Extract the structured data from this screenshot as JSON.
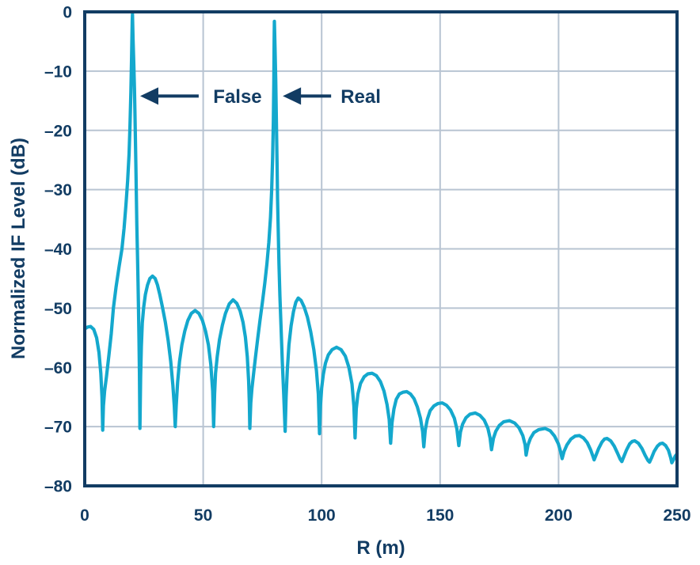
{
  "colors": {
    "curve": "#14a8cd",
    "axis": "#123c63",
    "grid": "#b8c4d2",
    "text": "#123c63",
    "background": "#ffffff"
  },
  "chart_data": {
    "type": "line",
    "title": "",
    "xlabel": "R (m)",
    "ylabel": "Normalized IF Level (dB)",
    "xlim": [
      0,
      250
    ],
    "ylim": [
      -80,
      0
    ],
    "grid": true,
    "legend": "none",
    "x_ticks": {
      "values": [
        0,
        50,
        100,
        150,
        200,
        250
      ],
      "labels": [
        "0",
        "50",
        "100",
        "150",
        "200",
        "250"
      ]
    },
    "y_ticks": {
      "values": [
        0,
        -10,
        -20,
        -30,
        -40,
        -50,
        -60,
        -70,
        -80
      ],
      "labels": [
        "0",
        "–10",
        "–20",
        "–30",
        "–40",
        "–50",
        "–60",
        "–70",
        "–80"
      ]
    },
    "peaks": [
      {
        "label": "False",
        "x": 20,
        "db": -0.4
      },
      {
        "label": "Real",
        "x": 80,
        "db": -1.6
      }
    ],
    "annotations": [
      {
        "label": "False",
        "arrow_db": -14.2,
        "arrow_tip_m": 23.4,
        "arrow_tail_m": 48.1,
        "label_x_m": 64.5
      },
      {
        "label": "Real",
        "arrow_db": -14.2,
        "arrow_tip_m": 83.6,
        "arrow_tail_m": 104,
        "label_x_m": 116.5
      }
    ],
    "series": [
      {
        "name": "Normalized IF level",
        "points": [
          [
            0,
            -53.5
          ],
          [
            1.2,
            -53.2
          ],
          [
            2.5,
            -53.1
          ],
          [
            3.8,
            -53.6
          ],
          [
            5,
            -55
          ],
          [
            6,
            -57.5
          ],
          [
            6.8,
            -61
          ],
          [
            7.3,
            -65
          ],
          [
            7.6,
            -70.6
          ],
          [
            7.9,
            -66.5
          ],
          [
            8.4,
            -64
          ],
          [
            9.2,
            -61.5
          ],
          [
            10.2,
            -58
          ],
          [
            11.2,
            -54.3
          ],
          [
            12.1,
            -50
          ],
          [
            13.2,
            -46.5
          ],
          [
            14.5,
            -43
          ],
          [
            15.7,
            -40
          ],
          [
            16.6,
            -36.5
          ],
          [
            17.4,
            -32.5
          ],
          [
            18.1,
            -28.5
          ],
          [
            18.7,
            -24
          ],
          [
            19.1,
            -19.5
          ],
          [
            19.5,
            -13.5
          ],
          [
            19.8,
            -7.5
          ],
          [
            20.05,
            -1.5
          ],
          [
            20.15,
            -0.4
          ],
          [
            20.4,
            -4.5
          ],
          [
            20.7,
            -8.5
          ],
          [
            21,
            -13
          ],
          [
            21.2,
            -17
          ],
          [
            21.4,
            -21.5
          ],
          [
            21.6,
            -26
          ],
          [
            21.8,
            -31
          ],
          [
            22,
            -36
          ],
          [
            22.3,
            -41.5
          ],
          [
            22.5,
            -45.5
          ],
          [
            22.7,
            -50
          ],
          [
            22.9,
            -55
          ],
          [
            23.1,
            -61
          ],
          [
            23.3,
            -70.3
          ],
          [
            23.6,
            -61.5
          ],
          [
            23.9,
            -56.5
          ],
          [
            24.3,
            -52.5
          ],
          [
            24.9,
            -49.8
          ],
          [
            25.6,
            -47.7
          ],
          [
            26.5,
            -46.1
          ],
          [
            27.5,
            -45
          ],
          [
            28.6,
            -44.6
          ],
          [
            29.7,
            -45
          ],
          [
            30.7,
            -46.1
          ],
          [
            31.7,
            -47.7
          ],
          [
            32.8,
            -49.8
          ],
          [
            34,
            -52.3
          ],
          [
            35.2,
            -55.4
          ],
          [
            36.3,
            -59
          ],
          [
            37.2,
            -63
          ],
          [
            37.8,
            -66.5
          ],
          [
            38.2,
            -70
          ],
          [
            38.6,
            -66.5
          ],
          [
            39.2,
            -62.5
          ],
          [
            40,
            -59
          ],
          [
            41,
            -56.2
          ],
          [
            42.2,
            -53.9
          ],
          [
            43.5,
            -52.1
          ],
          [
            45,
            -50.9
          ],
          [
            46.6,
            -50.4
          ],
          [
            48.2,
            -50.9
          ],
          [
            49.7,
            -52.1
          ],
          [
            51,
            -53.9
          ],
          [
            52.2,
            -56.2
          ],
          [
            53.2,
            -59.5
          ],
          [
            54,
            -64
          ],
          [
            54.4,
            -70
          ],
          [
            54.8,
            -64.5
          ],
          [
            55.2,
            -61
          ],
          [
            55.9,
            -58.2
          ],
          [
            56.9,
            -55.3
          ],
          [
            58.1,
            -52.9
          ],
          [
            59.4,
            -50.9
          ],
          [
            61,
            -49.3
          ],
          [
            62.6,
            -48.6
          ],
          [
            64.2,
            -49.2
          ],
          [
            65.6,
            -50.5
          ],
          [
            66.8,
            -52.4
          ],
          [
            67.8,
            -54.9
          ],
          [
            68.6,
            -58.2
          ],
          [
            69.2,
            -62.3
          ],
          [
            69.5,
            -66
          ],
          [
            69.7,
            -70.3
          ],
          [
            70.1,
            -66
          ],
          [
            70.6,
            -63.5
          ],
          [
            71.3,
            -61
          ],
          [
            72.1,
            -58.2
          ],
          [
            73,
            -55.2
          ],
          [
            74,
            -52
          ],
          [
            75,
            -49
          ],
          [
            76,
            -45.8
          ],
          [
            76.9,
            -42.5
          ],
          [
            77.7,
            -38.9
          ],
          [
            78.4,
            -34.7
          ],
          [
            78.9,
            -30
          ],
          [
            79.3,
            -24.5
          ],
          [
            79.6,
            -18.5
          ],
          [
            79.8,
            -12
          ],
          [
            79.95,
            -5
          ],
          [
            80.05,
            -1.6
          ],
          [
            80.3,
            -6
          ],
          [
            80.6,
            -11.5
          ],
          [
            80.8,
            -16.5
          ],
          [
            81,
            -21.5
          ],
          [
            81.2,
            -26.5
          ],
          [
            81.4,
            -31.5
          ],
          [
            81.7,
            -37
          ],
          [
            82,
            -42.5
          ],
          [
            82.4,
            -48
          ],
          [
            82.9,
            -53.5
          ],
          [
            83.4,
            -59
          ],
          [
            84,
            -64.5
          ],
          [
            84.6,
            -70.8
          ],
          [
            85,
            -65
          ],
          [
            85.5,
            -60.5
          ],
          [
            86.2,
            -56.2
          ],
          [
            87.1,
            -53
          ],
          [
            88.1,
            -50.6
          ],
          [
            89.1,
            -49
          ],
          [
            90.1,
            -48.3
          ],
          [
            91.3,
            -48.7
          ],
          [
            92.6,
            -49.8
          ],
          [
            94,
            -51.5
          ],
          [
            95.4,
            -54
          ],
          [
            96.7,
            -57
          ],
          [
            97.8,
            -60.5
          ],
          [
            98.6,
            -64.5
          ],
          [
            99.1,
            -71.2
          ],
          [
            99.5,
            -66.5
          ],
          [
            100,
            -63.5
          ],
          [
            100.7,
            -61.2
          ],
          [
            101.6,
            -59.3
          ],
          [
            102.8,
            -57.9
          ],
          [
            104.4,
            -57
          ],
          [
            106.3,
            -56.6
          ],
          [
            108.2,
            -57
          ],
          [
            110,
            -58.1
          ],
          [
            111.5,
            -60
          ],
          [
            112.8,
            -62.8
          ],
          [
            113.6,
            -66.5
          ],
          [
            114.1,
            -71.9
          ],
          [
            114.6,
            -67
          ],
          [
            115.3,
            -64.5
          ],
          [
            116.4,
            -62.7
          ],
          [
            117.9,
            -61.6
          ],
          [
            119.5,
            -61.1
          ],
          [
            121.3,
            -61
          ],
          [
            123.1,
            -61.4
          ],
          [
            124.8,
            -62.4
          ],
          [
            126.3,
            -64
          ],
          [
            127.6,
            -66.3
          ],
          [
            128.5,
            -68.8
          ],
          [
            129.1,
            -72.8
          ],
          [
            129.7,
            -69.3
          ],
          [
            130.5,
            -67
          ],
          [
            131.5,
            -65.4
          ],
          [
            132.8,
            -64.5
          ],
          [
            134.3,
            -64.2
          ],
          [
            135.9,
            -64.1
          ],
          [
            137.5,
            -64.5
          ],
          [
            139,
            -65.3
          ],
          [
            140.4,
            -66.7
          ],
          [
            141.7,
            -68.6
          ],
          [
            142.6,
            -70.8
          ],
          [
            143.1,
            -73.4
          ],
          [
            143.7,
            -70.6
          ],
          [
            144.6,
            -68.8
          ],
          [
            145.8,
            -67.3
          ],
          [
            147.4,
            -66.5
          ],
          [
            149.1,
            -66.1
          ],
          [
            150.9,
            -66
          ],
          [
            152.7,
            -66.4
          ],
          [
            154.4,
            -67.2
          ],
          [
            156,
            -68.6
          ],
          [
            157.1,
            -70.4
          ],
          [
            157.9,
            -73.2
          ],
          [
            158.6,
            -70.9
          ],
          [
            159.5,
            -69.6
          ],
          [
            160.9,
            -68.5
          ],
          [
            162.6,
            -67.9
          ],
          [
            164.8,
            -67.7
          ],
          [
            166.8,
            -68.1
          ],
          [
            168.6,
            -68.9
          ],
          [
            170.2,
            -70.3
          ],
          [
            171.1,
            -71.9
          ],
          [
            171.7,
            -73.9
          ],
          [
            172.5,
            -72
          ],
          [
            173.5,
            -70.8
          ],
          [
            175,
            -69.8
          ],
          [
            176.8,
            -69.2
          ],
          [
            179.3,
            -69
          ],
          [
            181.5,
            -69.4
          ],
          [
            183.3,
            -70.2
          ],
          [
            184.9,
            -71.5
          ],
          [
            185.9,
            -73.1
          ],
          [
            186.3,
            -74.8
          ],
          [
            187.1,
            -73.1
          ],
          [
            188.1,
            -72
          ],
          [
            189.6,
            -71
          ],
          [
            191.6,
            -70.5
          ],
          [
            194.3,
            -70.3
          ],
          [
            196.5,
            -70.7
          ],
          [
            198.3,
            -71.6
          ],
          [
            199.9,
            -72.9
          ],
          [
            200.9,
            -74.3
          ],
          [
            201.5,
            -75.4
          ],
          [
            202.3,
            -74.2
          ],
          [
            203.5,
            -73.1
          ],
          [
            205.2,
            -72.1
          ],
          [
            207,
            -71.6
          ],
          [
            208.8,
            -71.5
          ],
          [
            210.5,
            -71.9
          ],
          [
            212.1,
            -72.7
          ],
          [
            213.5,
            -73.9
          ],
          [
            214.5,
            -75
          ],
          [
            215,
            -75.6
          ],
          [
            215.8,
            -74.8
          ],
          [
            216.9,
            -73.7
          ],
          [
            218.3,
            -72.6
          ],
          [
            219.4,
            -72.1
          ],
          [
            220.5,
            -72
          ],
          [
            222,
            -72.4
          ],
          [
            223.5,
            -73.3
          ],
          [
            224.9,
            -74.5
          ],
          [
            226,
            -75.5
          ],
          [
            226.7,
            -75.9
          ],
          [
            227.5,
            -75.1
          ],
          [
            228.6,
            -74
          ],
          [
            230,
            -72.9
          ],
          [
            231.1,
            -72.5
          ],
          [
            232.2,
            -72.4
          ],
          [
            233.7,
            -72.8
          ],
          [
            235.2,
            -73.7
          ],
          [
            236.6,
            -74.9
          ],
          [
            237.7,
            -75.7
          ],
          [
            238.4,
            -76
          ],
          [
            239.2,
            -75.3
          ],
          [
            240.3,
            -74.2
          ],
          [
            241.7,
            -73.3
          ],
          [
            242.8,
            -72.9
          ],
          [
            243.9,
            -72.8
          ],
          [
            245.2,
            -73.2
          ],
          [
            246.4,
            -74
          ],
          [
            247.3,
            -75.2
          ],
          [
            247.8,
            -76.1
          ],
          [
            248.5,
            -75.6
          ],
          [
            249.2,
            -75
          ],
          [
            250,
            -74.6
          ]
        ]
      }
    ]
  }
}
